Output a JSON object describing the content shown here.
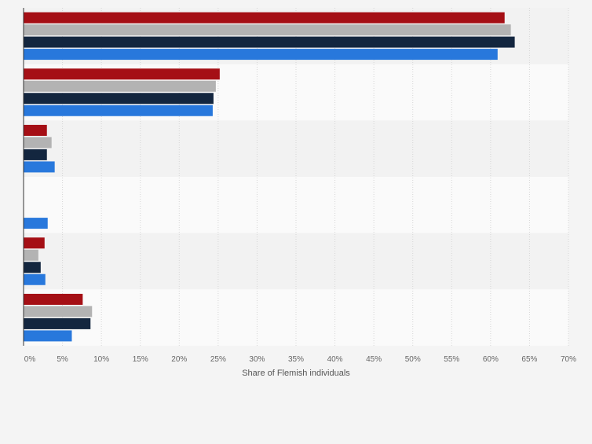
{
  "chart_data": {
    "type": "bar",
    "orientation": "horizontal",
    "title": "",
    "xlabel": "Share of Flemish individuals",
    "ylabel": "",
    "xlim": [
      0,
      70
    ],
    "x_ticks": [
      "0%",
      "5%",
      "10%",
      "15%",
      "20%",
      "25%",
      "30%",
      "35%",
      "40%",
      "45%",
      "50%",
      "55%",
      "60%",
      "65%",
      "70%"
    ],
    "grid": true,
    "legend": "none visible",
    "categories": [
      "",
      "",
      "",
      "",
      "",
      ""
    ],
    "series": [
      {
        "name": "",
        "color": "#a50f15",
        "values": [
          61.8,
          25.2,
          3.0,
          0,
          2.7,
          7.6
        ]
      },
      {
        "name": "",
        "color": "#b3b3b3",
        "values": [
          62.6,
          24.7,
          3.6,
          0,
          1.9,
          8.8
        ]
      },
      {
        "name": "",
        "color": "#13263f",
        "values": [
          63.1,
          24.4,
          3.0,
          0,
          2.2,
          8.6
        ]
      },
      {
        "name": "",
        "color": "#2878dc",
        "values": [
          60.9,
          24.3,
          4.0,
          3.1,
          2.8,
          6.2
        ]
      }
    ]
  }
}
